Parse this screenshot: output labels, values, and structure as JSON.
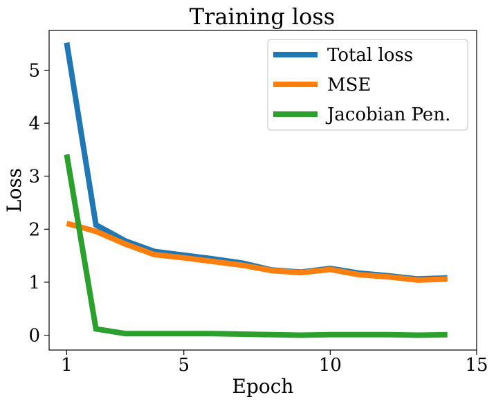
{
  "chart_data": {
    "type": "line",
    "title": "Training loss",
    "xlabel": "Epoch",
    "ylabel": "Loss",
    "xlim": [
      0.4,
      15
    ],
    "ylim": [
      -0.28,
      5.75
    ],
    "xticks": [
      1,
      5,
      10,
      15
    ],
    "yticks": [
      0,
      1,
      2,
      3,
      4,
      5
    ],
    "grid": false,
    "legend_position": "top-right",
    "x": [
      1,
      2,
      3,
      4,
      5,
      6,
      7,
      8,
      9,
      10,
      11,
      12,
      13,
      14
    ],
    "series": [
      {
        "name": "Total loss",
        "color": "#1f77b4",
        "values": [
          5.52,
          2.08,
          1.78,
          1.58,
          1.51,
          1.44,
          1.36,
          1.23,
          1.19,
          1.26,
          1.17,
          1.12,
          1.06,
          1.08
        ]
      },
      {
        "name": "MSE",
        "color": "#ff7f0e",
        "values": [
          2.11,
          1.96,
          1.72,
          1.52,
          1.46,
          1.39,
          1.32,
          1.22,
          1.18,
          1.24,
          1.14,
          1.1,
          1.04,
          1.06
        ]
      },
      {
        "name": "Jacobian Pen.",
        "color": "#2ca02c",
        "values": [
          3.41,
          0.12,
          0.03,
          0.03,
          0.03,
          0.03,
          0.02,
          0.01,
          0.0,
          0.01,
          0.01,
          0.01,
          0.0,
          0.01
        ]
      }
    ]
  }
}
